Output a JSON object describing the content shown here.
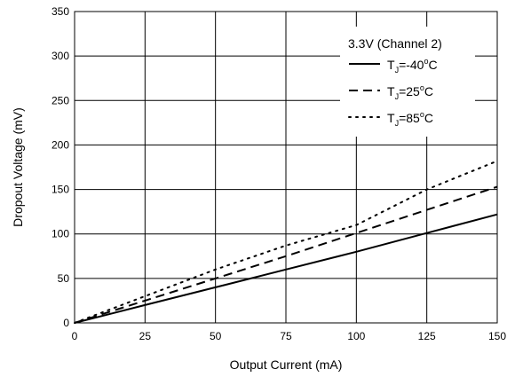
{
  "chart_data": {
    "type": "line",
    "title": "",
    "xlabel": "Output Current (mA)",
    "ylabel": "Dropout Voltage (mV)",
    "xlim": [
      0,
      150
    ],
    "ylim": [
      0,
      350
    ],
    "x_ticks": [
      "0",
      "25",
      "50",
      "75",
      "100",
      "125",
      "150"
    ],
    "y_ticks": [
      "0",
      "50",
      "100",
      "150",
      "200",
      "250",
      "300",
      "350"
    ],
    "grid": true,
    "legend": {
      "title": "3.3V (Channel 2)",
      "placement": "top-right"
    },
    "series": [
      {
        "name": "TJ=-40°C",
        "label_prefix": "T",
        "label_sub": "J",
        "label_value": "=-40",
        "label_unit": "C",
        "degree": "o",
        "style": "solid",
        "x": [
          0,
          25,
          50,
          75,
          100,
          125,
          150
        ],
        "y": [
          0,
          20,
          40,
          60,
          80,
          101,
          122
        ]
      },
      {
        "name": "TJ=25°C",
        "label_prefix": "T",
        "label_sub": "J",
        "label_value": "=25",
        "label_unit": "C",
        "degree": "o",
        "style": "dashed",
        "x": [
          0,
          25,
          50,
          75,
          100,
          125,
          150
        ],
        "y": [
          0,
          25,
          50,
          75,
          101,
          127,
          153
        ]
      },
      {
        "name": "TJ=85°C",
        "label_prefix": "T",
        "label_sub": "J",
        "label_value": "=85",
        "label_unit": "C",
        "degree": "o",
        "style": "dotted",
        "x": [
          0,
          25,
          50,
          75,
          100,
          125,
          150
        ],
        "y": [
          0,
          30,
          60,
          87,
          110,
          150,
          182
        ]
      }
    ]
  }
}
